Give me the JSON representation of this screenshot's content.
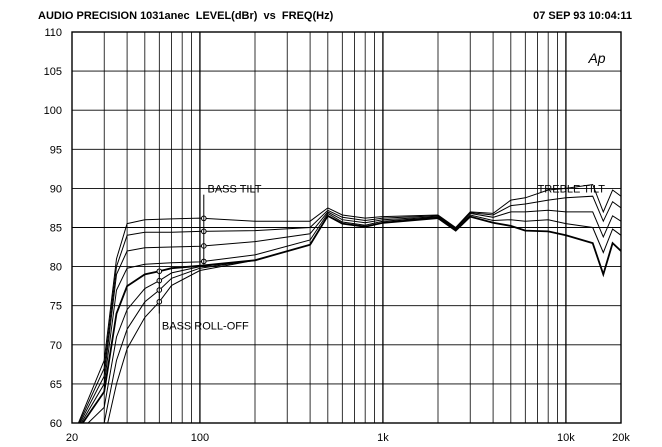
{
  "header": {
    "title": "AUDIO PRECISION 1031anec  LEVEL(dBr)  vs  FREQ(Hz)",
    "timestamp": "07 SEP 93 10:04:11"
  },
  "chart_data": {
    "type": "line",
    "xscale": "log",
    "xlim": [
      20,
      20000
    ],
    "ylim": [
      60,
      110
    ],
    "grid": true,
    "xticks": [
      {
        "v": 20,
        "label": "20"
      },
      {
        "v": 100,
        "label": "100"
      },
      {
        "v": 1000,
        "label": "1k"
      },
      {
        "v": 10000,
        "label": "10k"
      },
      {
        "v": 20000,
        "label": "20k"
      }
    ],
    "yticks": [
      60,
      65,
      70,
      75,
      80,
      85,
      90,
      95,
      100,
      105,
      110
    ],
    "logo": "Ap",
    "annotations": [
      {
        "text": "BASS  TILT",
        "x": 110,
        "y": 90
      },
      {
        "text": "TREBLE  TILT",
        "x": 7000,
        "y": 90
      },
      {
        "text": "BASS  ROLL-OFF",
        "x": 62,
        "y": 72.5
      }
    ],
    "series": [
      {
        "role": "bass-tilt",
        "x": [
          20,
          30,
          35,
          40,
          50,
          70,
          100,
          200,
          400,
          500,
          600,
          800,
          1000,
          2000,
          2500,
          3000,
          4000,
          5000,
          6000,
          8000,
          10000,
          14000,
          16000,
          18000,
          20000
        ],
        "y": [
          58,
          68,
          81,
          85.5,
          86.0,
          86.1,
          86.2,
          85.8,
          85.8,
          87.5,
          86.6,
          86.2,
          86.4,
          86.6,
          85.0,
          87.0,
          86.8,
          88.5,
          88.8,
          89.8,
          90.0,
          90.5,
          87.0,
          89.8,
          89.0
        ]
      },
      {
        "role": "bass-tilt",
        "x": [
          20,
          30,
          35,
          40,
          50,
          70,
          100,
          200,
          400,
          500,
          600,
          800,
          1000,
          2000,
          2500,
          3000,
          4000,
          5000,
          6000,
          8000,
          10000,
          14000,
          16000,
          18000,
          20000
        ],
        "y": [
          58,
          67,
          80,
          84.0,
          84.4,
          84.4,
          84.5,
          84.6,
          85.0,
          87.2,
          86.3,
          85.9,
          86.2,
          86.5,
          84.9,
          86.9,
          86.6,
          87.8,
          88.0,
          88.5,
          88.8,
          89.0,
          85.8,
          88.3,
          87.5
        ]
      },
      {
        "role": "bass-tilt",
        "x": [
          20,
          30,
          35,
          40,
          50,
          70,
          100,
          200,
          400,
          500,
          600,
          800,
          1000,
          2000,
          2500,
          3000,
          4000,
          5000,
          6000,
          8000,
          10000,
          14000,
          16000,
          18000,
          20000
        ],
        "y": [
          58,
          66,
          79,
          82.0,
          82.4,
          82.5,
          82.6,
          83.2,
          84.2,
          87.0,
          86.0,
          85.6,
          86.0,
          86.4,
          84.8,
          86.8,
          86.3,
          87.0,
          87.0,
          87.2,
          87.0,
          87.0,
          83.8,
          86.5,
          85.8
        ]
      },
      {
        "role": "bass-tilt",
        "x": [
          20,
          30,
          35,
          40,
          50,
          70,
          100,
          200,
          400,
          500,
          600,
          800,
          1000,
          2000,
          2500,
          3000,
          4000,
          5000,
          6000,
          8000,
          10000,
          14000,
          16000,
          18000,
          20000
        ],
        "y": [
          58,
          65,
          77,
          79.8,
          80.3,
          80.5,
          80.6,
          81.5,
          83.4,
          86.8,
          85.7,
          85.3,
          85.8,
          86.3,
          84.7,
          86.6,
          85.9,
          86.0,
          85.8,
          86.0,
          85.5,
          85.0,
          81.8,
          84.8,
          84.0
        ]
      },
      {
        "role": "bass-roll-off",
        "x": [
          20,
          30,
          35,
          40,
          50,
          60,
          70,
          100,
          200,
          400,
          500,
          600,
          800,
          1000,
          2000,
          2500,
          3000,
          4000,
          5000,
          6000,
          8000,
          10000,
          14000,
          16000,
          18000,
          20000
        ],
        "y": [
          58,
          64,
          74,
          77.5,
          79.0,
          79.4,
          79.8,
          80.1,
          80.8,
          82.8,
          86.5,
          85.5,
          85.1,
          85.6,
          86.2,
          84.6,
          86.4,
          85.6,
          85.2,
          84.6,
          84.5,
          84.0,
          83.0,
          79.0,
          83.0,
          82.0
        ]
      },
      {
        "role": "bass-roll-off",
        "x": [
          20,
          30,
          35,
          40,
          50,
          60,
          70,
          100,
          200,
          400,
          500
        ],
        "y": [
          57,
          62,
          71,
          74.5,
          77.2,
          78.2,
          79.2,
          80.0,
          80.8,
          82.8,
          86.5
        ]
      },
      {
        "role": "bass-roll-off",
        "x": [
          20,
          30,
          35,
          40,
          50,
          60,
          70,
          100,
          200,
          400,
          500
        ],
        "y": [
          56,
          60,
          68,
          72.0,
          75.5,
          77.0,
          78.5,
          79.8,
          80.8,
          82.8,
          86.5
        ]
      },
      {
        "role": "bass-roll-off",
        "x": [
          20,
          30,
          35,
          40,
          50,
          60,
          70,
          100,
          200,
          400,
          500
        ],
        "y": [
          55,
          58,
          65,
          69.5,
          73.5,
          75.5,
          77.6,
          79.5,
          80.8,
          82.8,
          86.5
        ]
      }
    ]
  }
}
